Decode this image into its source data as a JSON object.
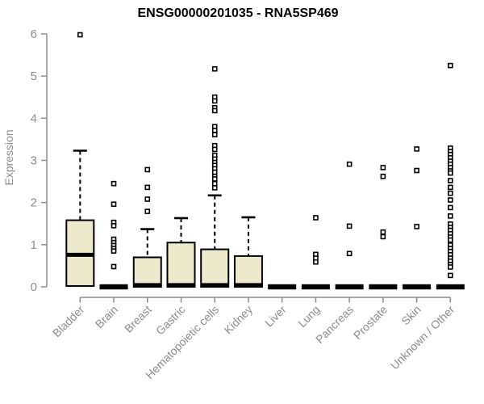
{
  "title": "ENSG00000201035 - RNA5SP469",
  "style": {
    "background": "#ffffff",
    "box_fill": "#EEE8CD",
    "box_stroke": "#000000",
    "median_color": "#000000",
    "axis_color": "#8c8c8c",
    "tick_label_color": "#8c8c8c",
    "title_color": "#000000"
  },
  "chart_data": {
    "type": "boxplot",
    "title": "ENSG00000201035 - RNA5SP469",
    "xlabel": "",
    "ylabel": "Expression",
    "ylim": [
      0,
      6
    ],
    "y_ticks": [
      0,
      1,
      2,
      3,
      4,
      5,
      6
    ],
    "grid": false,
    "legend": false,
    "categories": [
      "Bladder",
      "Brain",
      "Breast",
      "Gastric",
      "Hematopoietic cells",
      "Kidney",
      "Liver",
      "Lung",
      "Pancreas",
      "Prostate",
      "Skin",
      "Unknown / Other"
    ],
    "series": [
      {
        "name": "Bladder",
        "q1": 0.02,
        "median": 0.76,
        "q3": 1.58,
        "whisker_low": 0,
        "whisker_high": 3.23,
        "outliers": [
          5.98
        ]
      },
      {
        "name": "Brain",
        "q1": 0,
        "median": 0,
        "q3": 0,
        "whisker_low": 0,
        "whisker_high": 0,
        "outliers": [
          2.45,
          1.96,
          1.53,
          1.45,
          1.13,
          1.05,
          0.98,
          0.91,
          0.85,
          0.48
        ]
      },
      {
        "name": "Breast",
        "q1": 0,
        "median": 0.04,
        "q3": 0.7,
        "whisker_low": 0,
        "whisker_high": 1.37,
        "outliers": [
          2.78,
          2.36,
          2.08,
          1.79
        ]
      },
      {
        "name": "Gastric",
        "q1": 0,
        "median": 0.04,
        "q3": 1.05,
        "whisker_low": 0,
        "whisker_high": 1.63,
        "outliers": []
      },
      {
        "name": "Hematopoietic cells",
        "q1": 0,
        "median": 0.04,
        "q3": 0.89,
        "whisker_low": 0,
        "whisker_high": 2.17,
        "outliers": [
          5.17,
          4.5,
          4.41,
          4.25,
          4.18,
          3.8,
          3.71,
          3.61,
          3.35,
          3.26,
          3.12,
          3.03,
          2.95,
          2.88,
          2.8,
          2.72,
          2.62,
          2.56,
          2.45,
          2.35
        ]
      },
      {
        "name": "Kidney",
        "q1": 0,
        "median": 0.04,
        "q3": 0.73,
        "whisker_low": 0,
        "whisker_high": 1.65,
        "outliers": []
      },
      {
        "name": "Liver",
        "q1": 0,
        "median": 0,
        "q3": 0,
        "whisker_low": 0,
        "whisker_high": 0,
        "outliers": []
      },
      {
        "name": "Lung",
        "q1": 0,
        "median": 0,
        "q3": 0,
        "whisker_low": 0,
        "whisker_high": 0,
        "outliers": [
          1.64,
          0.77,
          0.68,
          0.59
        ]
      },
      {
        "name": "Pancreas",
        "q1": 0,
        "median": 0,
        "q3": 0,
        "whisker_low": 0,
        "whisker_high": 0,
        "outliers": [
          2.91,
          1.44,
          0.79
        ]
      },
      {
        "name": "Prostate",
        "q1": 0,
        "median": 0,
        "q3": 0,
        "whisker_low": 0,
        "whisker_high": 0,
        "outliers": [
          2.83,
          2.62,
          1.3,
          1.19
        ]
      },
      {
        "name": "Skin",
        "q1": 0,
        "median": 0,
        "q3": 0,
        "whisker_low": 0,
        "whisker_high": 0,
        "outliers": [
          3.27,
          2.76,
          1.43
        ]
      },
      {
        "name": "Unknown / Other",
        "q1": 0,
        "median": 0,
        "q3": 0,
        "whisker_low": 0,
        "whisker_high": 0,
        "outliers": [
          5.25,
          3.29,
          3.21,
          3.14,
          3.06,
          2.98,
          2.91,
          2.83,
          2.75,
          2.7,
          2.52,
          2.36,
          2.22,
          2.06,
          1.88,
          1.68,
          1.49,
          1.41,
          1.34,
          1.26,
          1.18,
          1.11,
          0.99,
          0.91,
          0.84,
          0.76,
          0.68,
          0.61,
          0.53,
          0.47,
          0.27
        ]
      }
    ]
  }
}
